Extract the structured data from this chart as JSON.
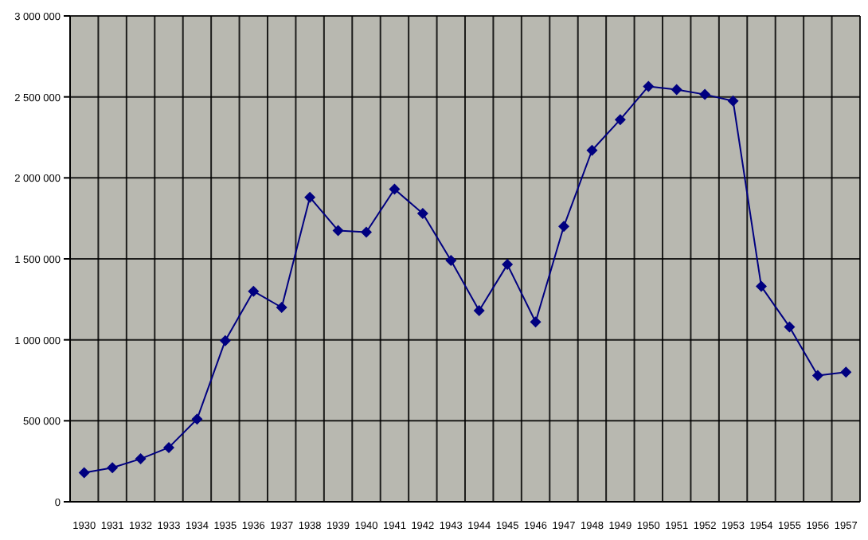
{
  "chart_data": {
    "type": "line",
    "categories": [
      "1930",
      "1931",
      "1932",
      "1933",
      "1934",
      "1935",
      "1936",
      "1937",
      "1938",
      "1939",
      "1940",
      "1941",
      "1942",
      "1943",
      "1944",
      "1945",
      "1946",
      "1947",
      "1948",
      "1949",
      "1950",
      "1951",
      "1952",
      "1953",
      "1954",
      "1955",
      "1956",
      "1957"
    ],
    "series": [
      {
        "color": "#000080",
        "values": [
          180000,
          210000,
          265000,
          335000,
          510000,
          995000,
          1300000,
          1200000,
          1880000,
          1675000,
          1665000,
          1930000,
          1780000,
          1490000,
          1180000,
          1465000,
          1110000,
          1700000,
          2170000,
          2360000,
          2565000,
          2545000,
          2515000,
          2475000,
          1330000,
          1080000,
          780000,
          800000
        ]
      }
    ],
    "ylim": [
      0,
      3000000
    ],
    "yticks": [
      0,
      {
        "value": 500000,
        "label": "500 000"
      },
      {
        "value": 1000000,
        "label": "1 000 000"
      },
      {
        "value": 1500000,
        "label": "1 500 000"
      },
      {
        "value": 2000000,
        "label": "2 000 000"
      },
      {
        "value": 2500000,
        "label": "2 500 000"
      },
      {
        "value": 3000000,
        "label": "3 000 000"
      }
    ],
    "grid": true,
    "legend": false,
    "marker": "diamond",
    "line_style": "solid"
  }
}
